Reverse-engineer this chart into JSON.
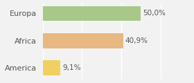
{
  "categories": [
    "America",
    "Africa",
    "Europa"
  ],
  "values": [
    9.1,
    40.9,
    50.0
  ],
  "labels": [
    "9,1%",
    "40,9%",
    "50,0%"
  ],
  "bar_colors": [
    "#f0d060",
    "#e8b882",
    "#a8c888"
  ],
  "background_color": "#f2f2f2",
  "xlim": [
    0,
    75
  ],
  "bar_height": 0.55,
  "label_fontsize": 7.5,
  "tick_fontsize": 8,
  "grid_color": "#ffffff",
  "text_color": "#555555"
}
